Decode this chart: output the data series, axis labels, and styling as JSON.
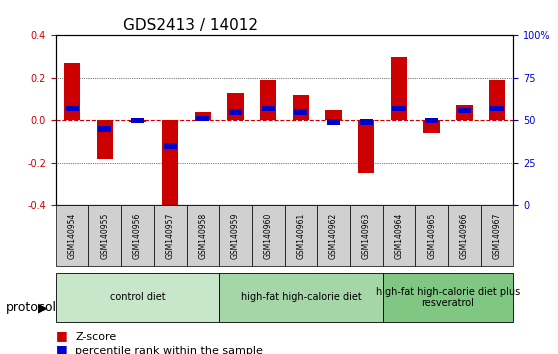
{
  "title": "GDS2413 / 14012",
  "samples": [
    "GSM140954",
    "GSM140955",
    "GSM140956",
    "GSM140957",
    "GSM140958",
    "GSM140959",
    "GSM140960",
    "GSM140961",
    "GSM140962",
    "GSM140963",
    "GSM140964",
    "GSM140965",
    "GSM140966",
    "GSM140967"
  ],
  "z_scores": [
    0.27,
    -0.18,
    -0.01,
    -0.42,
    0.04,
    0.13,
    0.19,
    0.12,
    0.05,
    -0.25,
    0.3,
    -0.06,
    0.07,
    0.19
  ],
  "percentile_ranks": [
    0.08,
    -0.04,
    0.0,
    -0.15,
    0.0,
    0.02,
    0.04,
    0.02,
    -0.01,
    -0.01,
    0.07,
    0.0,
    0.05,
    0.07
  ],
  "percentile_values": [
    57,
    45,
    50,
    35,
    51,
    55,
    57,
    55,
    49,
    49,
    57,
    50,
    56,
    57
  ],
  "groups": [
    {
      "label": "control diet",
      "start": 0,
      "end": 4,
      "color": "#c8e6c9"
    },
    {
      "label": "high-fat high-calorie diet",
      "start": 5,
      "end": 9,
      "color": "#a5d6a7"
    },
    {
      "label": "high-fat high-calorie diet plus\nresveratrol",
      "start": 10,
      "end": 13,
      "color": "#81c784"
    }
  ],
  "bar_color": "#cc0000",
  "dot_color": "#0000cc",
  "ylim": [
    -0.4,
    0.4
  ],
  "yticks_left": [
    -0.4,
    -0.2,
    0.0,
    0.2,
    0.4
  ],
  "yticks_right": [
    0,
    25,
    50,
    75,
    100
  ],
  "grid_color": "#000000",
  "zero_line_color": "#cc0000",
  "background_plot": "#ffffff",
  "background_label": "#d0d0d0",
  "title_fontsize": 11,
  "tick_fontsize": 7,
  "label_fontsize": 8,
  "legend_fontsize": 8,
  "protocol_fontsize": 9
}
